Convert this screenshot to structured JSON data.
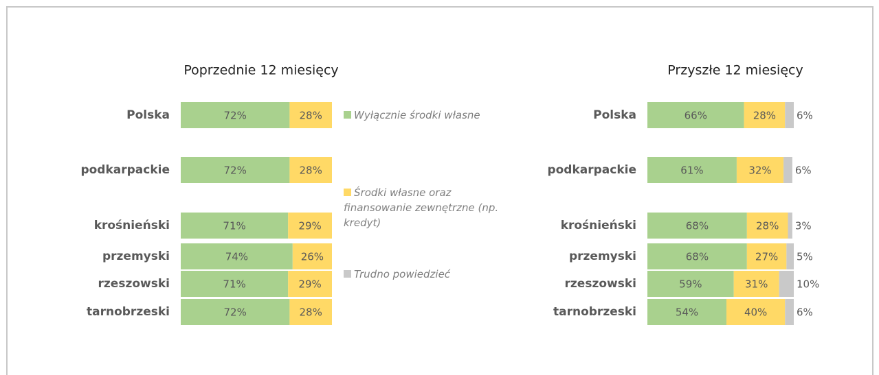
{
  "chart_data": [
    {
      "type": "stacked-bar-horizontal",
      "title": "Poprzednie 12 miesięcy",
      "categories": [
        "Polska",
        "podkarpackie",
        "krośnieński",
        "przemyski",
        "rzeszowski",
        "tarnobrzeski"
      ],
      "xlim": [
        0,
        100
      ],
      "series": [
        {
          "color": "#a9d18e",
          "values": [
            72,
            72,
            71,
            74,
            71,
            72
          ],
          "value_labels": [
            "72%",
            "72%",
            "71%",
            "74%",
            "71%",
            "72%"
          ]
        },
        {
          "color": "#ffd966",
          "values": [
            28,
            28,
            29,
            26,
            29,
            28
          ],
          "value_labels": [
            "28%",
            "28%",
            "29%",
            "26%",
            "29%",
            "28%"
          ]
        }
      ]
    },
    {
      "type": "stacked-bar-horizontal",
      "title": "Przyszłe 12 miesięcy",
      "categories": [
        "Polska",
        "podkarpackie",
        "krośnieński",
        "przemyski",
        "rzeszowski",
        "tarnobrzeski"
      ],
      "xlim": [
        0,
        100
      ],
      "series": [
        {
          "color": "#a9d18e",
          "values": [
            66,
            61,
            68,
            68,
            59,
            54
          ],
          "value_labels": [
            "66%",
            "61%",
            "68%",
            "68%",
            "59%",
            "54%"
          ]
        },
        {
          "color": "#ffd966",
          "values": [
            28,
            32,
            28,
            27,
            31,
            40
          ],
          "value_labels": [
            "28%",
            "32%",
            "28%",
            "27%",
            "31%",
            "40%"
          ]
        },
        {
          "color": "#c9c9c9",
          "values": [
            6,
            6,
            3,
            5,
            10,
            6
          ],
          "value_labels": [
            "6%",
            "6%",
            "3%",
            "5%",
            "10%",
            "6%"
          ]
        }
      ]
    }
  ],
  "legend": {
    "items": [
      {
        "name": "Wyłącznie środki własne",
        "color": "#a9d18e"
      },
      {
        "name": "Środki własne oraz finansowanie zewnętrzne (np. kredyt)",
        "color": "#ffd966"
      },
      {
        "name": "Trudno powiedzieć",
        "color": "#c9c9c9"
      }
    ]
  }
}
